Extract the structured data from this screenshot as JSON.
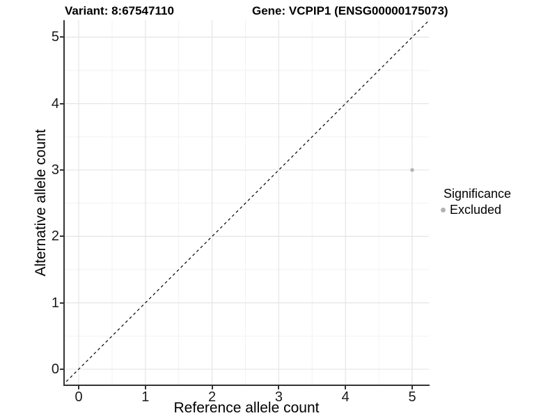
{
  "chart_data": {
    "type": "scatter",
    "title_left": "Variant: 8:67547110",
    "title_right": "Gene: VCPIP1 (ENSG00000175073)",
    "xlabel": "Reference allele count",
    "ylabel": "Alternative allele count",
    "x_ticks": [
      0,
      1,
      2,
      3,
      4,
      5
    ],
    "y_ticks": [
      0,
      1,
      2,
      3,
      4,
      5
    ],
    "xlim": [
      -0.25,
      5.25
    ],
    "ylim": [
      -0.25,
      5.25
    ],
    "grid": {
      "major": true,
      "minor": true
    },
    "points": [
      {
        "x": 5,
        "y": 3,
        "significance": "Excluded"
      }
    ],
    "abline": {
      "slope": 1,
      "intercept": 0,
      "linetype": "dashed"
    },
    "legend": {
      "title": "Significance",
      "position": "right",
      "entries": [
        {
          "label": "Excluded",
          "marker": "circle",
          "color": "#b3b3b3"
        }
      ]
    },
    "colors": {
      "point": "#b3b3b3",
      "abline": "#000000",
      "grid_major": "#e6e6e6",
      "grid_minor": "#f2f2f2",
      "axis": "#333333",
      "background": "#ffffff"
    }
  }
}
